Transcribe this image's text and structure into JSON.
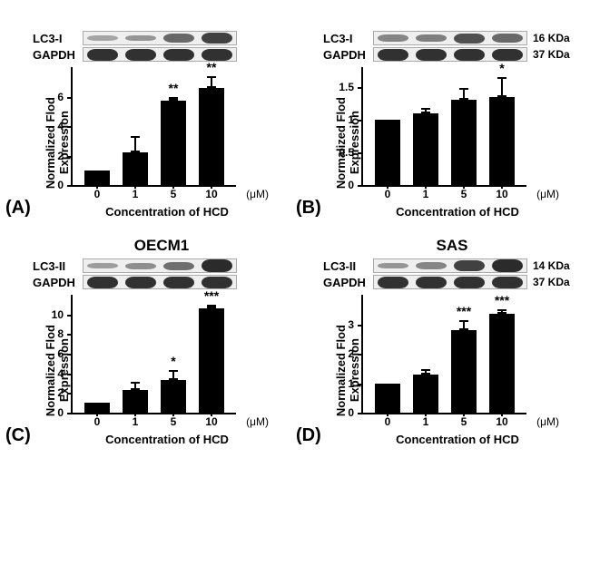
{
  "figure": {
    "panels": [
      {
        "letter": "(A)",
        "title": "",
        "blots": [
          {
            "label": "LC3-I",
            "mw": "",
            "intensities": [
              0.15,
              0.25,
              0.55,
              0.8
            ]
          },
          {
            "label": "GAPDH",
            "mw": "",
            "intensities": [
              0.9,
              0.9,
              0.9,
              0.9
            ]
          }
        ],
        "chart": {
          "type": "bar",
          "ylabel": "Normalized Flod\nExpression",
          "xlabel": "Concentration of HCD",
          "unit": "(μM)",
          "categories": [
            "0",
            "1",
            "5",
            "10"
          ],
          "values": [
            1.0,
            2.2,
            5.7,
            6.6
          ],
          "errors": [
            0.0,
            1.1,
            0.3,
            0.8
          ],
          "sig": [
            "",
            "",
            "**",
            "**"
          ],
          "bar_color": "#000000",
          "yticks": [
            0,
            2,
            4,
            6
          ],
          "ylim": [
            0,
            8
          ]
        }
      },
      {
        "letter": "(B)",
        "title": "",
        "blots": [
          {
            "label": "LC3-I",
            "mw": "16 KDa",
            "intensities": [
              0.35,
              0.4,
              0.7,
              0.55
            ]
          },
          {
            "label": "GAPDH",
            "mw": "37 KDa",
            "intensities": [
              0.9,
              0.9,
              0.9,
              0.9
            ]
          }
        ],
        "chart": {
          "type": "bar",
          "ylabel": "Normalized Flod\nExpression",
          "xlabel": "Concentration of HCD",
          "unit": "(μM)",
          "categories": [
            "0",
            "1",
            "5",
            "10"
          ],
          "values": [
            1.0,
            1.1,
            1.3,
            1.35
          ],
          "errors": [
            0.0,
            0.08,
            0.18,
            0.3
          ],
          "sig": [
            "",
            "",
            "",
            "*"
          ],
          "bar_color": "#000000",
          "yticks": [
            0,
            0.5,
            1.0,
            1.5
          ],
          "ylim": [
            0,
            1.8
          ]
        }
      },
      {
        "letter": "(C)",
        "title": "OECM1",
        "blots": [
          {
            "label": "LC3-II",
            "mw": "",
            "intensities": [
              0.2,
              0.3,
              0.5,
              0.95
            ]
          },
          {
            "label": "GAPDH",
            "mw": "",
            "intensities": [
              0.9,
              0.9,
              0.9,
              0.9
            ]
          }
        ],
        "chart": {
          "type": "bar",
          "ylabel": "Normalized Flod\nExpression",
          "xlabel": "Concentration of HCD",
          "unit": "(μM)",
          "categories": [
            "0",
            "1",
            "5",
            "10"
          ],
          "values": [
            1.0,
            2.3,
            3.3,
            10.6
          ],
          "errors": [
            0.0,
            0.8,
            1.0,
            0.4
          ],
          "sig": [
            "",
            "",
            "*",
            "***"
          ],
          "bar_color": "#000000",
          "yticks": [
            0,
            2,
            4,
            6,
            8,
            10
          ],
          "ylim": [
            0,
            12
          ]
        }
      },
      {
        "letter": "(D)",
        "title": "SAS",
        "blots": [
          {
            "label": "LC3-II",
            "mw": "14 KDa",
            "intensities": [
              0.25,
              0.35,
              0.8,
              0.95
            ]
          },
          {
            "label": "GAPDH",
            "mw": "37 KDa",
            "intensities": [
              0.9,
              0.9,
              0.9,
              0.9
            ]
          }
        ],
        "chart": {
          "type": "bar",
          "ylabel": "Normalized Flod\nExpression",
          "xlabel": "Concentration of HCD",
          "unit": "(μM)",
          "categories": [
            "0",
            "1",
            "5",
            "10"
          ],
          "values": [
            1.0,
            1.3,
            2.8,
            3.35
          ],
          "errors": [
            0.0,
            0.18,
            0.35,
            0.15
          ],
          "sig": [
            "",
            "",
            "***",
            "***"
          ],
          "bar_color": "#000000",
          "yticks": [
            0,
            1,
            2,
            3
          ],
          "ylim": [
            0,
            4
          ]
        }
      }
    ]
  }
}
